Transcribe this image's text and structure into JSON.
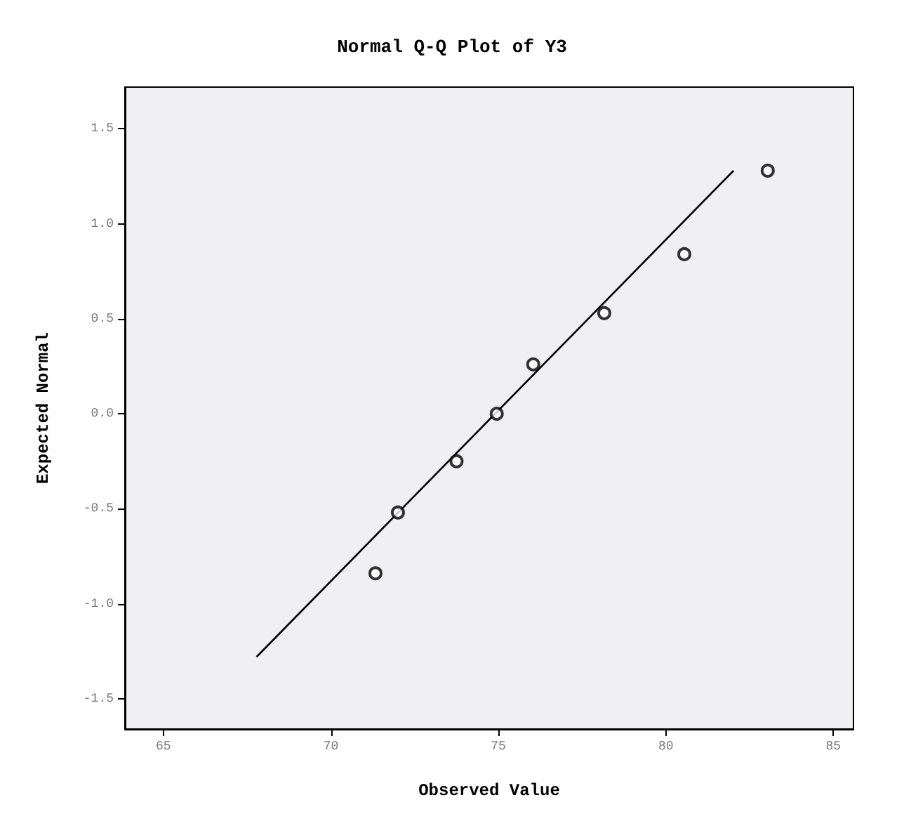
{
  "chart_data": {
    "type": "scatter",
    "title": "Normal Q-Q Plot of Y3",
    "xlabel": "Observed Value",
    "ylabel": "Expected Normal",
    "xlim": [
      63.85,
      85.6
    ],
    "xticks": [
      65,
      70,
      75,
      80,
      85
    ],
    "ylim": [
      -1.66,
      1.72
    ],
    "yticks": [
      {
        "value": -1.5,
        "label": "-1.5"
      },
      {
        "value": -1,
        "label": "-1.0"
      },
      {
        "value": -0.5,
        "label": "-0.5"
      },
      {
        "value": 0,
        "label": "0.0"
      },
      {
        "value": 0.5,
        "label": "0.5"
      },
      {
        "value": 1,
        "label": "1.0"
      },
      {
        "value": 1.5,
        "label": "1.5"
      }
    ],
    "grid": false,
    "series": [
      {
        "marker": "circle",
        "color": "#000000",
        "x": [
          71.33,
          72.0,
          73.75,
          74.95,
          76.04,
          78.16,
          80.55,
          83.04
        ],
        "values": [
          -0.84,
          -0.52,
          -0.25,
          0.0,
          0.26,
          0.53,
          0.84,
          1.28
        ]
      },
      {
        "type": "line",
        "marker": "none",
        "color": "#000000",
        "x": [
          67.78,
          82.02
        ],
        "values": [
          -1.28,
          1.28
        ]
      }
    ]
  }
}
